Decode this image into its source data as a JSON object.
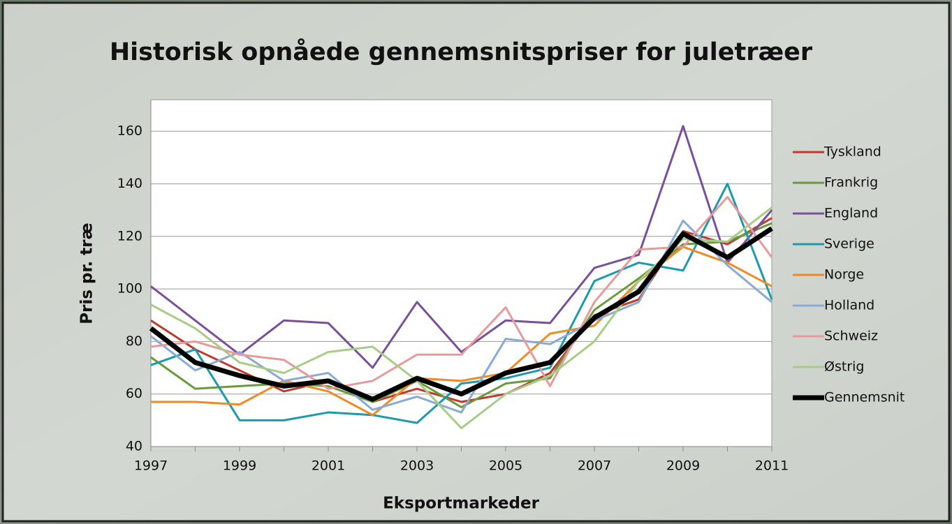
{
  "chart_data": {
    "type": "line",
    "title": "Historisk opnåede gennemsnitspriser for juletræer",
    "x_label": "Eksportmarkeder",
    "y_label": "Pris pr. træ",
    "x": [
      1997,
      1998,
      1999,
      2000,
      2001,
      2002,
      2003,
      2004,
      2005,
      2006,
      2007,
      2008,
      2009,
      2010,
      2011
    ],
    "xlim": [
      1997,
      2011
    ],
    "xticks": [
      1997,
      1999,
      2001,
      2003,
      2005,
      2007,
      2009,
      2011
    ],
    "ylim": [
      40,
      172
    ],
    "yticks": [
      40,
      60,
      80,
      100,
      120,
      140,
      160
    ],
    "grid": true,
    "legend": "right",
    "series": [
      {
        "name": "Tyskland",
        "color": "#c0392b",
        "values": [
          88,
          77,
          69,
          61,
          65,
          57,
          62,
          57,
          60,
          68,
          90,
          96,
          122,
          117,
          127
        ]
      },
      {
        "name": "Frankrig",
        "color": "#6a9a3a",
        "values": [
          74,
          62,
          63,
          64,
          63,
          57,
          65,
          55,
          64,
          66,
          92,
          104,
          117,
          118,
          125
        ]
      },
      {
        "name": "England",
        "color": "#7a4f9a",
        "values": [
          101,
          88,
          75,
          88,
          87,
          70,
          95,
          76,
          88,
          87,
          108,
          113,
          162,
          110,
          130
        ]
      },
      {
        "name": "Sverige",
        "color": "#1a9aaa",
        "values": [
          71,
          77,
          50,
          50,
          53,
          52,
          49,
          64,
          66,
          70,
          103,
          110,
          107,
          140,
          96
        ]
      },
      {
        "name": "Norge",
        "color": "#f08a24",
        "values": [
          57,
          57,
          56,
          65,
          61,
          52,
          66,
          65,
          68,
          83,
          86,
          103,
          116,
          110,
          101
        ]
      },
      {
        "name": "Holland",
        "color": "#8aaad6",
        "values": [
          82,
          69,
          76,
          65,
          68,
          54,
          59,
          53,
          81,
          79,
          88,
          95,
          126,
          109,
          95
        ]
      },
      {
        "name": "Schweiz",
        "color": "#e89a9a",
        "values": [
          78,
          80,
          75,
          73,
          62,
          65,
          75,
          75,
          93,
          63,
          95,
          115,
          116,
          135,
          112
        ]
      },
      {
        "name": "Østrig",
        "color": "#a8cc88",
        "values": [
          94,
          85,
          72,
          68,
          76,
          78,
          65,
          47,
          60,
          67,
          80,
          103,
          119,
          118,
          131
        ]
      },
      {
        "name": "Gennemsnit",
        "color": "#000000",
        "values": [
          85,
          72,
          67,
          63,
          65,
          58,
          66,
          60,
          68,
          72,
          89,
          99,
          121,
          112,
          123
        ]
      }
    ]
  }
}
